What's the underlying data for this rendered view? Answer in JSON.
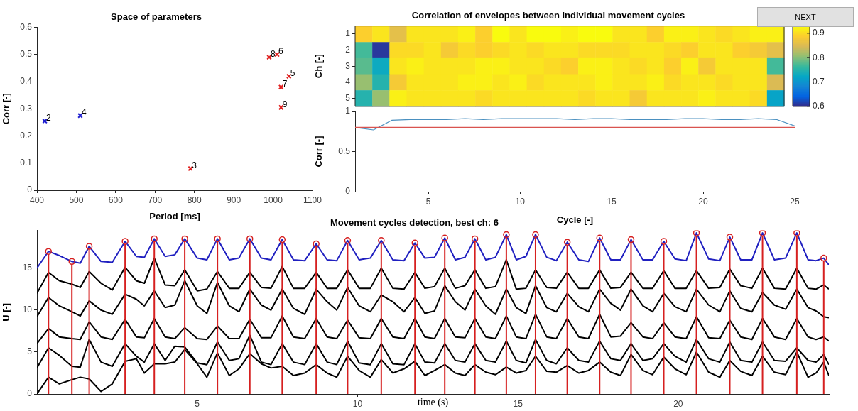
{
  "chart_data": [
    {
      "type": "scatter",
      "title": "Space of parameters",
      "xlabel": "Period [ms]",
      "ylabel": "Corr [-]",
      "xlim": [
        400,
        1100
      ],
      "xticks": [
        400,
        500,
        600,
        700,
        800,
        900,
        1000,
        1100
      ],
      "ylim": [
        0,
        0.6
      ],
      "yticks": [
        0,
        0.1,
        0.2,
        0.3,
        0.4,
        0.5,
        0.6
      ],
      "marker": "cross",
      "series": [
        {
          "color": "#1f1fd0",
          "x": [
            420,
            510
          ],
          "values": [
            0.255,
            0.275
          ]
        },
        {
          "color": "#e0201f",
          "x": [
            790,
            1040,
            1010,
            1020,
            990,
            1020
          ],
          "values": [
            0.08,
            0.42,
            0.5,
            0.38,
            0.49,
            0.305
          ]
        }
      ],
      "annotations": [
        {
          "text": "2",
          "x": 420,
          "y": 0.255
        },
        {
          "text": "3",
          "x": 790,
          "y": 0.08
        },
        {
          "text": "4",
          "x": 510,
          "y": 0.275
        },
        {
          "text": "5",
          "x": 1040,
          "y": 0.42
        },
        {
          "text": "6",
          "x": 1010,
          "y": 0.5
        },
        {
          "text": "7",
          "x": 1020,
          "y": 0.38
        },
        {
          "text": "8",
          "x": 990,
          "y": 0.49
        },
        {
          "text": "9",
          "x": 1020,
          "y": 0.305
        }
      ]
    },
    {
      "type": "heatmap",
      "title": "Correlation of envelopes between individual movement cycles",
      "ylabel": "Ch [-]",
      "tick_labels": "y",
      "categories": [
        null,
        null,
        null,
        null,
        null,
        null,
        null,
        null,
        null,
        null,
        null,
        null,
        null,
        null,
        null,
        null,
        null,
        null,
        null,
        null,
        null,
        null,
        null,
        null,
        null
      ],
      "y_categories": [
        "1",
        "2",
        "3",
        "4",
        "5"
      ],
      "cells": [
        [
          0.89,
          0.91,
          0.86,
          0.91,
          0.91,
          0.91,
          0.92,
          0.89,
          0.93,
          0.91,
          0.93,
          0.93,
          0.92,
          0.93,
          0.93,
          0.91,
          0.91,
          0.89,
          0.92,
          0.92,
          0.91,
          0.9,
          0.91,
          0.92,
          0.92
        ],
        [
          0.77,
          0.61,
          0.9,
          0.9,
          0.91,
          0.88,
          0.9,
          0.89,
          0.9,
          0.91,
          0.9,
          0.91,
          0.91,
          0.9,
          0.9,
          0.9,
          0.91,
          0.91,
          0.9,
          0.89,
          0.91,
          0.91,
          0.89,
          0.88,
          0.86
        ],
        [
          0.78,
          0.73,
          0.91,
          0.92,
          0.91,
          0.91,
          0.91,
          0.92,
          0.92,
          0.91,
          0.91,
          0.9,
          0.89,
          0.92,
          0.92,
          0.91,
          0.9,
          0.91,
          0.89,
          0.92,
          0.88,
          0.91,
          0.91,
          0.91,
          0.77
        ],
        [
          0.81,
          0.75,
          0.88,
          0.91,
          0.91,
          0.91,
          0.92,
          0.92,
          0.91,
          0.92,
          0.9,
          0.91,
          0.91,
          0.91,
          0.92,
          0.91,
          0.91,
          0.92,
          0.9,
          0.91,
          0.91,
          0.9,
          0.91,
          0.91,
          0.85
        ],
        [
          0.75,
          0.81,
          0.92,
          0.91,
          0.91,
          0.91,
          0.91,
          0.9,
          0.91,
          0.91,
          0.91,
          0.91,
          0.91,
          0.9,
          0.91,
          0.91,
          0.88,
          0.91,
          0.91,
          0.91,
          0.92,
          0.91,
          0.91,
          0.9,
          0.72
        ]
      ],
      "clim": [
        0.6,
        0.93
      ],
      "cticks": [
        0.6,
        0.7,
        0.8,
        0.9
      ],
      "annotations": [
        "NEXT"
      ]
    },
    {
      "type": "line",
      "xlabel": "Cycle [-]",
      "ylabel": "Corr [-]",
      "x": [
        1,
        2,
        3,
        4,
        5,
        6,
        7,
        8,
        9,
        10,
        11,
        12,
        13,
        14,
        15,
        16,
        17,
        18,
        19,
        20,
        21,
        22,
        23,
        24,
        25
      ],
      "xlim": [
        1,
        25
      ],
      "xticks": [
        5,
        10,
        15,
        20,
        25
      ],
      "ylim": [
        0,
        1
      ],
      "yticks": [
        0,
        0.5,
        1
      ],
      "series": [
        {
          "color": "#4a90c0",
          "values": [
            0.8,
            0.77,
            0.89,
            0.9,
            0.9,
            0.9,
            0.91,
            0.9,
            0.91,
            0.91,
            0.91,
            0.91,
            0.9,
            0.91,
            0.91,
            0.9,
            0.9,
            0.9,
            0.91,
            0.91,
            0.9,
            0.9,
            0.91,
            0.9,
            0.82
          ]
        }
      ],
      "ref_lines": [
        {
          "axis": "y",
          "value": 0.8,
          "color": "#d9534f"
        }
      ]
    },
    {
      "type": "line",
      "title": "Movement cycles detection, best ch: 6",
      "xlabel": "time (s)",
      "ylabel": "U [-]",
      "x": [
        0,
        0.36,
        0.7,
        1.09,
        1.35,
        1.63,
        2.0,
        2.35,
        2.75,
        3.1,
        3.35,
        3.66,
        4.0,
        4.3,
        4.61,
        5.0,
        5.3,
        5.63,
        6.0,
        6.3,
        6.64,
        7.0,
        7.3,
        7.65,
        8.0,
        8.35,
        8.71,
        9.05,
        9.35,
        9.69,
        10.05,
        10.4,
        10.74,
        11.1,
        11.45,
        11.79,
        12.1,
        12.4,
        12.72,
        13.05,
        13.35,
        13.66,
        14.0,
        14.3,
        14.64,
        14.95,
        15.25,
        15.55,
        15.9,
        16.2,
        16.54,
        16.9,
        17.2,
        17.55,
        17.9,
        18.2,
        18.53,
        18.9,
        19.2,
        19.55,
        19.9,
        20.25,
        20.57,
        20.95,
        21.3,
        21.61,
        21.95,
        22.3,
        22.63,
        23.0,
        23.35,
        23.7,
        24.05,
        24.3,
        24.54,
        24.7
      ],
      "xlim": [
        0,
        24.7
      ],
      "xticks": [
        5,
        10,
        15,
        20
      ],
      "ylim": [
        0,
        19.5
      ],
      "yticks": [
        0,
        5,
        10,
        15
      ],
      "series": [
        {
          "type": "line",
          "color": "#2020c0",
          "values": [
            15.0,
            17.0,
            16.5,
            15.8,
            15.6,
            17.6,
            15.8,
            15.7,
            18.2,
            16.4,
            16.3,
            18.5,
            16.4,
            16.6,
            18.5,
            16.2,
            16.0,
            18.5,
            16.0,
            16.2,
            18.5,
            16.2,
            16.0,
            18.4,
            16.0,
            15.9,
            17.9,
            16.0,
            15.9,
            18.3,
            16.0,
            16.2,
            18.3,
            16.0,
            15.9,
            18.0,
            16.2,
            16.3,
            18.6,
            16.0,
            16.3,
            18.5,
            16.0,
            16.3,
            19.0,
            16.0,
            16.4,
            19.0,
            16.3,
            15.9,
            18.1,
            16.0,
            15.8,
            18.6,
            16.0,
            16.0,
            18.4,
            16.0,
            16.0,
            18.2,
            16.1,
            15.9,
            19.2,
            16.1,
            15.9,
            18.7,
            16.0,
            16.0,
            19.2,
            16.0,
            16.2,
            19.2,
            16.0,
            15.9,
            16.2,
            15.4
          ]
        },
        {
          "type": "line",
          "color": "#000000",
          "values": [
            12.0,
            14.5,
            13.5,
            13.1,
            12.7,
            14.6,
            13.2,
            12.4,
            15.1,
            13.5,
            13.2,
            16.2,
            13.0,
            12.9,
            14.8,
            12.3,
            12.5,
            14.6,
            12.6,
            12.6,
            14.5,
            12.7,
            12.6,
            15.2,
            12.6,
            12.6,
            14.5,
            12.6,
            12.6,
            14.8,
            12.6,
            12.6,
            15.0,
            12.6,
            12.5,
            14.5,
            12.6,
            12.8,
            15.0,
            12.6,
            12.9,
            14.8,
            12.6,
            12.8,
            16.0,
            12.5,
            12.6,
            14.8,
            12.7,
            12.6,
            14.5,
            12.6,
            12.6,
            14.8,
            12.6,
            12.7,
            14.5,
            12.6,
            12.6,
            14.7,
            12.6,
            12.6,
            14.7,
            12.6,
            12.7,
            14.9,
            12.9,
            12.6,
            15.0,
            12.6,
            12.5,
            15.0,
            12.6,
            12.5,
            13.0,
            12.5
          ]
        },
        {
          "type": "line",
          "color": "#000000",
          "values": [
            9.2,
            11.5,
            10.5,
            9.8,
            9.3,
            11.1,
            10.0,
            9.5,
            11.9,
            11.3,
            10.5,
            12.3,
            10.3,
            10.6,
            13.5,
            10.5,
            9.6,
            13.3,
            10.5,
            9.8,
            12.5,
            10.6,
            10.0,
            12.5,
            10.2,
            9.5,
            12.5,
            11.0,
            10.0,
            12.7,
            10.5,
            9.8,
            11.8,
            11.0,
            9.8,
            11.5,
            9.6,
            9.9,
            12.9,
            11.0,
            10.0,
            12.5,
            10.5,
            9.5,
            12.5,
            10.3,
            9.6,
            12.9,
            10.3,
            9.8,
            12.0,
            10.4,
            9.8,
            12.5,
            10.8,
            10.0,
            12.5,
            10.5,
            9.8,
            12.0,
            10.4,
            9.8,
            12.5,
            10.6,
            9.8,
            12.3,
            10.2,
            9.8,
            12.1,
            10.6,
            10.1,
            12.5,
            10.3,
            9.9,
            9.2,
            9.1
          ]
        },
        {
          "type": "line",
          "color": "#000000",
          "values": [
            6.0,
            7.8,
            6.8,
            6.6,
            6.5,
            8.6,
            6.8,
            6.5,
            8.9,
            6.8,
            6.7,
            9.0,
            6.8,
            6.6,
            7.9,
            6.6,
            6.5,
            8.1,
            6.6,
            6.6,
            8.9,
            6.7,
            6.7,
            9.3,
            6.8,
            6.6,
            9.0,
            6.8,
            6.6,
            8.8,
            6.7,
            6.6,
            9.0,
            6.8,
            6.6,
            9.0,
            6.8,
            6.6,
            9.0,
            6.8,
            6.7,
            9.0,
            6.8,
            6.6,
            9.3,
            6.8,
            6.6,
            9.5,
            6.8,
            6.6,
            9.0,
            6.8,
            6.6,
            9.5,
            6.8,
            6.9,
            8.5,
            6.8,
            6.6,
            8.5,
            6.8,
            6.6,
            9.2,
            6.7,
            6.6,
            8.8,
            6.8,
            6.5,
            9.0,
            6.8,
            6.5,
            9.0,
            6.8,
            6.5,
            6.8,
            6.3
          ]
        },
        {
          "type": "line",
          "color": "#000000",
          "values": [
            3.1,
            5.5,
            4.6,
            3.3,
            3.2,
            6.5,
            3.8,
            3.3,
            6.0,
            4.5,
            3.8,
            6.0,
            4.0,
            5.7,
            5.6,
            3.7,
            3.5,
            6.2,
            4.0,
            4.2,
            7.0,
            3.8,
            3.5,
            6.0,
            3.8,
            3.5,
            6.0,
            3.8,
            3.5,
            6.3,
            3.7,
            3.5,
            6.0,
            3.6,
            3.5,
            6.0,
            3.8,
            3.7,
            6.0,
            4.0,
            3.8,
            6.0,
            4.0,
            3.8,
            6.3,
            4.0,
            3.7,
            6.5,
            4.0,
            3.6,
            5.5,
            4.0,
            3.8,
            6.3,
            4.2,
            4.0,
            6.0,
            4.0,
            4.2,
            6.0,
            4.5,
            3.8,
            6.5,
            4.2,
            3.8,
            6.2,
            4.0,
            3.8,
            6.2,
            4.0,
            3.9,
            5.5,
            4.0,
            3.8,
            4.7,
            3.5
          ]
        },
        {
          "type": "line",
          "color": "#000000",
          "values": [
            0.0,
            2.0,
            1.2,
            1.7,
            2.0,
            1.8,
            0.3,
            1.2,
            3.9,
            4.2,
            2.5,
            3.6,
            3.6,
            3.8,
            5.3,
            3.6,
            2.0,
            4.9,
            2.2,
            3.0,
            4.8,
            3.6,
            3.1,
            3.3,
            2.2,
            2.5,
            3.5,
            2.5,
            2.0,
            4.5,
            2.8,
            2.0,
            4.1,
            2.5,
            3.0,
            3.9,
            2.2,
            2.8,
            3.5,
            2.5,
            2.2,
            3.5,
            2.6,
            2.3,
            3.2,
            2.5,
            2.8,
            4.5,
            2.7,
            2.6,
            3.4,
            2.5,
            2.8,
            3.8,
            2.6,
            2.2,
            4.7,
            2.8,
            2.3,
            4.4,
            3.0,
            2.3,
            5.0,
            2.6,
            2.0,
            4.0,
            2.7,
            2.2,
            4.5,
            2.6,
            2.3,
            5.0,
            2.0,
            2.5,
            3.8,
            2.2
          ]
        },
        {
          "type": "lollipop",
          "color": "#d62020",
          "x": [
            0.36,
            1.09,
            1.63,
            2.75,
            3.66,
            4.61,
            5.63,
            6.64,
            7.65,
            8.71,
            9.69,
            10.74,
            11.79,
            12.72,
            13.66,
            14.64,
            15.55,
            16.54,
            17.55,
            18.53,
            19.55,
            20.57,
            21.61,
            22.63,
            23.7,
            24.54
          ],
          "values": [
            17.0,
            15.8,
            17.6,
            18.2,
            18.5,
            18.5,
            18.5,
            18.5,
            18.4,
            17.9,
            18.3,
            18.3,
            18.0,
            18.6,
            18.5,
            19.0,
            19.0,
            18.1,
            18.6,
            18.4,
            18.2,
            19.2,
            18.7,
            19.2,
            19.2,
            16.2
          ]
        }
      ]
    }
  ]
}
